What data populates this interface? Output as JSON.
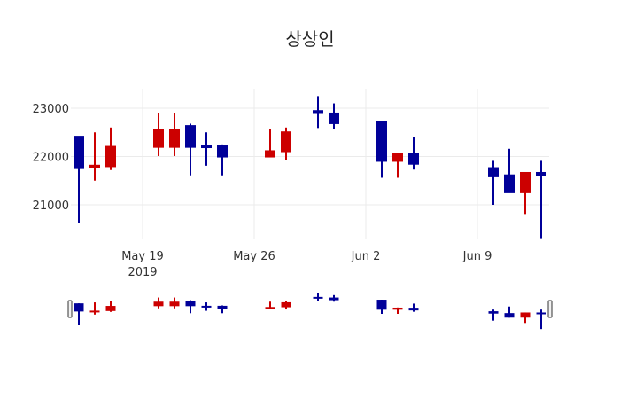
{
  "chart_data": {
    "type": "candlestick",
    "title": "상상인",
    "xlabel": "",
    "ylabel": "",
    "ylim": [
      20250,
      23450
    ],
    "yticks": [
      21000,
      22000,
      23000
    ],
    "ytick_labels": [
      "21000",
      "22000",
      "23000"
    ],
    "xtick_labels": [
      {
        "date": "2019-05-19",
        "label": "May 19",
        "sublabel": "2019"
      },
      {
        "date": "2019-05-26",
        "label": "May 26"
      },
      {
        "date": "2019-06-02",
        "label": "Jun 2"
      },
      {
        "date": "2019-06-09",
        "label": "Jun 9"
      }
    ],
    "grid": true,
    "range_slider": true,
    "increasing_color": "#cc0000",
    "decreasing_color": "#000099",
    "series": [
      {
        "date": "2019-05-15",
        "open": 22420,
        "high": 22420,
        "low": 20620,
        "close": 21750
      },
      {
        "date": "2019-05-16",
        "open": 21780,
        "high": 22500,
        "low": 21500,
        "close": 21820
      },
      {
        "date": "2019-05-17",
        "open": 21790,
        "high": 22600,
        "low": 21720,
        "close": 22210
      },
      {
        "date": "2019-05-20",
        "open": 22190,
        "high": 22900,
        "low": 22010,
        "close": 22560
      },
      {
        "date": "2019-05-21",
        "open": 22190,
        "high": 22900,
        "low": 22010,
        "close": 22560
      },
      {
        "date": "2019-05-22",
        "open": 22640,
        "high": 22680,
        "low": 21610,
        "close": 22190
      },
      {
        "date": "2019-05-23",
        "open": 22220,
        "high": 22500,
        "low": 21810,
        "close": 22200
      },
      {
        "date": "2019-05-24",
        "open": 22220,
        "high": 22250,
        "low": 21610,
        "close": 21990
      },
      {
        "date": "2019-05-27",
        "open": 21990,
        "high": 22560,
        "low": 21990,
        "close": 22120
      },
      {
        "date": "2019-05-28",
        "open": 22100,
        "high": 22600,
        "low": 21920,
        "close": 22510
      },
      {
        "date": "2019-05-30",
        "open": 22950,
        "high": 23250,
        "low": 22590,
        "close": 22890
      },
      {
        "date": "2019-05-31",
        "open": 22900,
        "high": 23100,
        "low": 22560,
        "close": 22680
      },
      {
        "date": "2019-06-03",
        "open": 22720,
        "high": 22720,
        "low": 21560,
        "close": 21900
      },
      {
        "date": "2019-06-04",
        "open": 21900,
        "high": 22080,
        "low": 21560,
        "close": 22070
      },
      {
        "date": "2019-06-05",
        "open": 22060,
        "high": 22400,
        "low": 21730,
        "close": 21840
      },
      {
        "date": "2019-06-10",
        "open": 21770,
        "high": 21910,
        "low": 21000,
        "close": 21580
      },
      {
        "date": "2019-06-11",
        "open": 21620,
        "high": 22160,
        "low": 21250,
        "close": 21250
      },
      {
        "date": "2019-06-12",
        "open": 21250,
        "high": 21670,
        "low": 20810,
        "close": 21670
      },
      {
        "date": "2019-06-13",
        "open": 21670,
        "high": 21910,
        "low": 20310,
        "close": 21600
      }
    ]
  }
}
